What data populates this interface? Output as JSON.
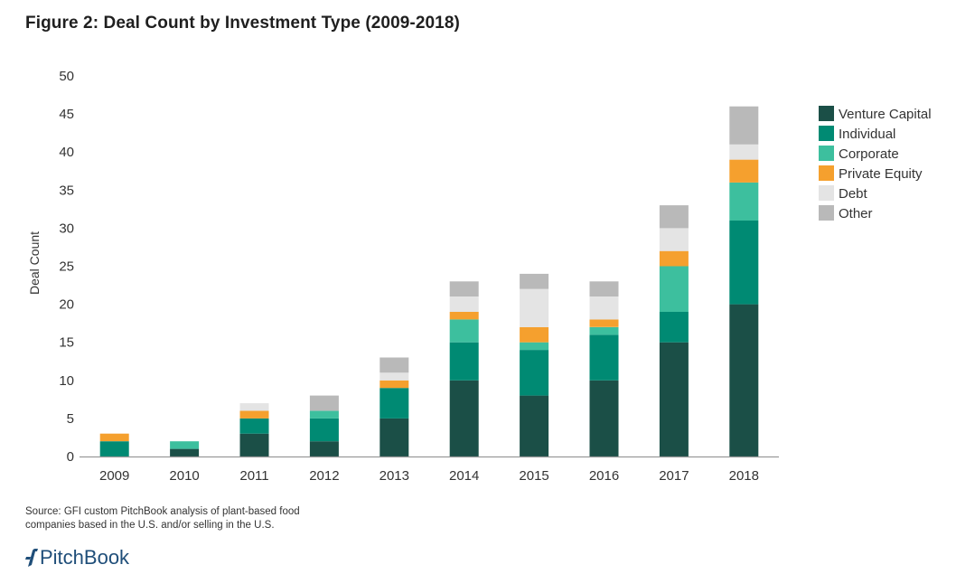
{
  "title": "Figure 2: Deal Count by Investment Type (2009-2018)",
  "source_line1": "Source: GFI custom PitchBook analysis of plant-based food",
  "source_line2": "companies based in the U.S. and/or selling in the U.S.",
  "brand": "PitchBook",
  "chart_data": {
    "type": "bar",
    "stacked": true,
    "title": "Figure 2: Deal Count by Investment Type (2009-2018)",
    "xlabel": "",
    "ylabel": "Deal Count",
    "ylim": [
      0,
      50
    ],
    "yticks": [
      0,
      5,
      10,
      15,
      20,
      25,
      30,
      35,
      40,
      45,
      50
    ],
    "legend_position": "right",
    "categories": [
      "2009",
      "2010",
      "2011",
      "2012",
      "2013",
      "2014",
      "2015",
      "2016",
      "2017",
      "2018"
    ],
    "series": [
      {
        "name": "Venture Capital",
        "color": "#1b4f47",
        "values": [
          0,
          1,
          3,
          2,
          5,
          10,
          8,
          10,
          15,
          20
        ]
      },
      {
        "name": "Individual",
        "color": "#008a73",
        "values": [
          2,
          0,
          2,
          3,
          4,
          5,
          6,
          6,
          4,
          11
        ]
      },
      {
        "name": "Corporate",
        "color": "#3dbf9e",
        "values": [
          0,
          1,
          0,
          1,
          0,
          3,
          1,
          1,
          6,
          5
        ]
      },
      {
        "name": "Private Equity",
        "color": "#f5a02e",
        "values": [
          1,
          0,
          1,
          0,
          1,
          1,
          2,
          1,
          2,
          3
        ]
      },
      {
        "name": "Debt",
        "color": "#e4e4e4",
        "values": [
          0,
          0,
          1,
          0,
          1,
          2,
          5,
          3,
          3,
          2
        ]
      },
      {
        "name": "Other",
        "color": "#b9b9b9",
        "values": [
          0,
          0,
          0,
          2,
          2,
          2,
          2,
          2,
          3,
          5
        ]
      }
    ]
  }
}
